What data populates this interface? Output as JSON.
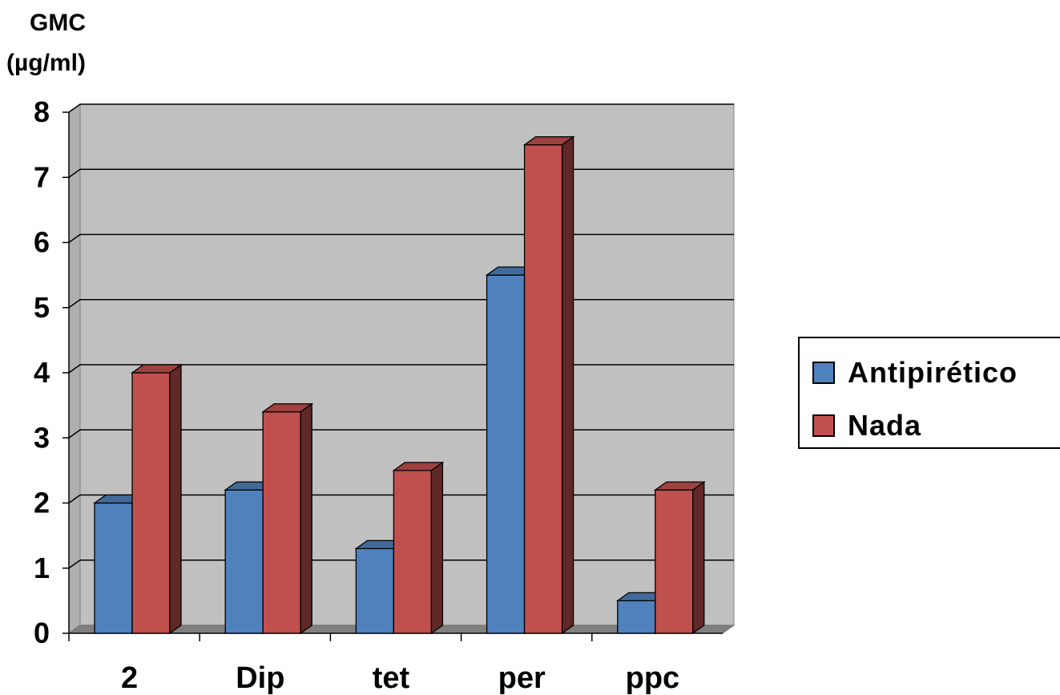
{
  "chart_data": {
    "type": "bar",
    "ylabel_lines": [
      "GMC",
      "(µg/ml)"
    ],
    "categories": [
      "2",
      "Dip",
      "tet",
      "per",
      "ppc"
    ],
    "series": [
      {
        "name": "Antipirético",
        "values": [
          2.0,
          2.2,
          1.3,
          5.5,
          0.5
        ],
        "color": "#4F81BD"
      },
      {
        "name": "Nada",
        "values": [
          4.0,
          3.4,
          2.5,
          7.5,
          2.2
        ],
        "color": "#C0504D"
      }
    ],
    "yticks": [
      "0",
      "1",
      "2",
      "3",
      "4",
      "5",
      "6",
      "7",
      "8"
    ],
    "ylim": [
      0,
      8
    ],
    "grid": true,
    "legend_position": "right"
  }
}
